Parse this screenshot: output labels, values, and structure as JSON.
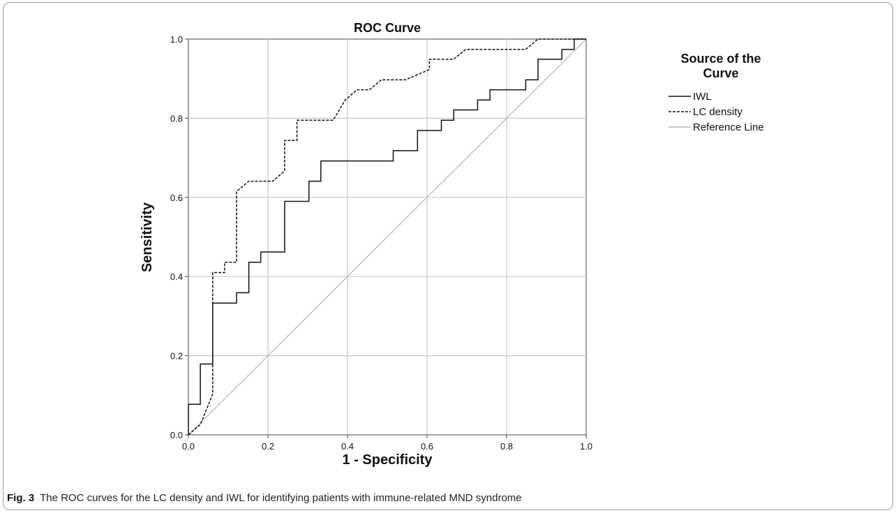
{
  "chart_data": {
    "type": "line",
    "title": "ROC Curve",
    "xlabel": "1 - Specificity",
    "ylabel": "Sensitivity",
    "xlim": [
      0,
      1
    ],
    "ylim": [
      0,
      1
    ],
    "xticks": [
      "0.0",
      "0.2",
      "0.4",
      "0.6",
      "0.8",
      "1.0"
    ],
    "yticks": [
      "0.0",
      "0.2",
      "0.4",
      "0.6",
      "0.8",
      "1.0"
    ],
    "grid": true,
    "legend": {
      "title": "Source of the Curve",
      "placement": "right"
    },
    "series": [
      {
        "name": "IWL",
        "style": "solid",
        "color": "#111111",
        "points": [
          [
            0,
            0
          ],
          [
            0,
            0.077
          ],
          [
            0.03,
            0.077
          ],
          [
            0.03,
            0.179
          ],
          [
            0.061,
            0.179
          ],
          [
            0.061,
            0.333
          ],
          [
            0.121,
            0.333
          ],
          [
            0.121,
            0.359
          ],
          [
            0.152,
            0.359
          ],
          [
            0.152,
            0.436
          ],
          [
            0.182,
            0.436
          ],
          [
            0.182,
            0.462
          ],
          [
            0.242,
            0.462
          ],
          [
            0.242,
            0.59
          ],
          [
            0.303,
            0.59
          ],
          [
            0.303,
            0.641
          ],
          [
            0.333,
            0.641
          ],
          [
            0.333,
            0.692
          ],
          [
            0.515,
            0.692
          ],
          [
            0.515,
            0.718
          ],
          [
            0.576,
            0.718
          ],
          [
            0.576,
            0.769
          ],
          [
            0.636,
            0.769
          ],
          [
            0.636,
            0.795
          ],
          [
            0.667,
            0.795
          ],
          [
            0.667,
            0.821
          ],
          [
            0.727,
            0.821
          ],
          [
            0.727,
            0.846
          ],
          [
            0.758,
            0.846
          ],
          [
            0.758,
            0.872
          ],
          [
            0.848,
            0.872
          ],
          [
            0.848,
            0.897
          ],
          [
            0.879,
            0.897
          ],
          [
            0.879,
            0.949
          ],
          [
            0.939,
            0.949
          ],
          [
            0.939,
            0.974
          ],
          [
            0.97,
            0.974
          ],
          [
            0.97,
            1
          ],
          [
            1,
            1
          ]
        ]
      },
      {
        "name": "LC density",
        "style": "dashed",
        "color": "#111111",
        "points": [
          [
            0,
            0
          ],
          [
            0.03,
            0.026
          ],
          [
            0.061,
            0.103
          ],
          [
            0.061,
            0.41
          ],
          [
            0.091,
            0.41
          ],
          [
            0.091,
            0.436
          ],
          [
            0.121,
            0.436
          ],
          [
            0.121,
            0.615
          ],
          [
            0.152,
            0.641
          ],
          [
            0.212,
            0.641
          ],
          [
            0.242,
            0.667
          ],
          [
            0.242,
            0.744
          ],
          [
            0.273,
            0.744
          ],
          [
            0.273,
            0.795
          ],
          [
            0.364,
            0.795
          ],
          [
            0.394,
            0.846
          ],
          [
            0.424,
            0.872
          ],
          [
            0.455,
            0.872
          ],
          [
            0.485,
            0.897
          ],
          [
            0.545,
            0.897
          ],
          [
            0.576,
            0.91
          ],
          [
            0.606,
            0.923
          ],
          [
            0.606,
            0.949
          ],
          [
            0.667,
            0.949
          ],
          [
            0.697,
            0.974
          ],
          [
            0.848,
            0.974
          ],
          [
            0.879,
            1
          ],
          [
            1,
            1
          ]
        ]
      },
      {
        "name": "Reference Line",
        "style": "solid",
        "color": "#b4b4b4",
        "points": [
          [
            0,
            0
          ],
          [
            1,
            1
          ]
        ]
      }
    ]
  },
  "caption": {
    "label": "Fig. 3",
    "text": "The ROC curves for the LC density and IWL for identifying patients with immune-related MND syndrome"
  }
}
